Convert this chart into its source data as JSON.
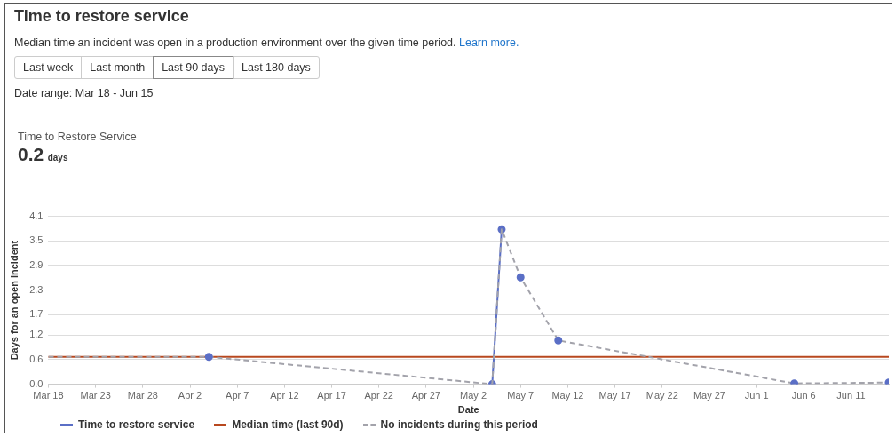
{
  "chart_data": {
    "type": "line",
    "title": "Time to restore service",
    "subtitle": "Median time an incident was open in a production environment over the given time period.",
    "annotations": [
      "Learn more.",
      "Last week",
      "Last month",
      "Last 90 days",
      "Last 180 days",
      "Date range: Mar 18 - Jun 15",
      "Time to Restore Service",
      "0.2",
      "days"
    ],
    "xlabel": "Date",
    "ylabel": "Days for an open incident",
    "series": [
      {
        "name": "Time to restore service",
        "color": "#5b6fc6",
        "marker": "circle",
        "line_style": "solid",
        "x": [
          "--05-04",
          "--05-05"
        ],
        "values": [
          0,
          3.78
        ]
      },
      {
        "name": "No incidents during this period",
        "color": "#a3a3ab",
        "marker": "none",
        "line_style": "dashed",
        "x": [
          "--03-18",
          "--04-04",
          "--05-04",
          "--05-05",
          "--05-07",
          "--05-11",
          "--06-05",
          "--06-15"
        ],
        "values": [
          0.67,
          0.67,
          0,
          3.78,
          2.61,
          1.07,
          0.02,
          0.04
        ]
      },
      {
        "type": "scatter",
        "color": "#5b6fc6",
        "marker": "circle",
        "x": [
          "--04-04",
          "--05-07",
          "--05-11",
          "--06-05",
          "--06-15"
        ],
        "values": [
          0.67,
          2.61,
          1.07,
          0.02,
          0.04
        ]
      }
    ],
    "ref_lines": [
      {
        "axis": "y",
        "value": 0.67,
        "label": "Median time (last 90d)",
        "color": "#b8481f"
      }
    ],
    "xlim": [
      "--03-18",
      "--06-15"
    ],
    "xticks": [
      {
        "value": "--03-18",
        "label": "Mar 18"
      },
      {
        "value": "--03-23",
        "label": "Mar 23"
      },
      {
        "value": "--03-28",
        "label": "Mar 28"
      },
      {
        "value": "--04-02",
        "label": "Apr 2"
      },
      {
        "value": "--04-07",
        "label": "Apr 7"
      },
      {
        "value": "--04-12",
        "label": "Apr 12"
      },
      {
        "value": "--04-17",
        "label": "Apr 17"
      },
      {
        "value": "--04-22",
        "label": "Apr 22"
      },
      {
        "value": "--04-27",
        "label": "Apr 27"
      },
      {
        "value": "--05-02",
        "label": "May 2"
      },
      {
        "value": "--05-07",
        "label": "May 7"
      },
      {
        "value": "--05-12",
        "label": "May 12"
      },
      {
        "value": "--05-17",
        "label": "May 17"
      },
      {
        "value": "--05-22",
        "label": "May 22"
      },
      {
        "value": "--05-27",
        "label": "May 27"
      },
      {
        "value": "--06-01",
        "label": "Jun 1"
      },
      {
        "value": "--06-06",
        "label": "Jun 6"
      },
      {
        "value": "--06-11",
        "label": "Jun 11"
      }
    ],
    "ylim": [
      0,
      4.1
    ],
    "yticks": [
      {
        "value": 0,
        "label": "0.0"
      },
      0.6,
      1.2,
      1.7,
      2.3,
      2.9,
      3.5,
      4.1
    ],
    "grid": "y",
    "legend": "bottom"
  }
}
